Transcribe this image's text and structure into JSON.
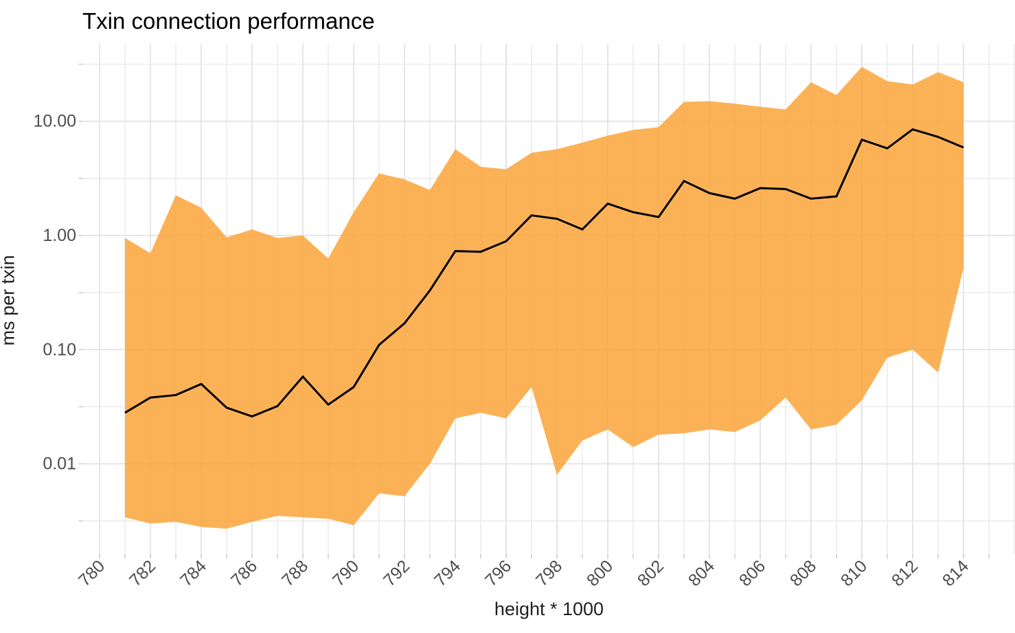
{
  "chart_data": {
    "type": "area",
    "title": "Txin connection performance",
    "xlabel": "height * 1000",
    "ylabel": "ms per txin",
    "grid": true,
    "legend": false,
    "x": [
      781,
      782,
      783,
      784,
      785,
      786,
      787,
      788,
      789,
      790,
      791,
      792,
      793,
      794,
      795,
      796,
      797,
      798,
      799,
      800,
      801,
      802,
      803,
      804,
      805,
      806,
      807,
      808,
      809,
      810,
      811,
      812,
      813,
      814
    ],
    "series": [
      {
        "name": "median",
        "kind": "line",
        "color": "#000000",
        "values": [
          0.028,
          0.038,
          0.04,
          0.05,
          0.031,
          0.026,
          0.032,
          0.058,
          0.033,
          0.047,
          0.11,
          0.17,
          0.33,
          0.73,
          0.72,
          0.89,
          1.5,
          1.4,
          1.13,
          1.9,
          1.6,
          1.45,
          3.0,
          2.35,
          2.1,
          2.6,
          2.55,
          2.1,
          2.2,
          6.9,
          5.8,
          8.5,
          7.3,
          5.9
        ]
      },
      {
        "name": "range-max",
        "kind": "band-upper",
        "values": [
          0.95,
          0.7,
          2.25,
          1.75,
          0.96,
          1.13,
          0.95,
          1.0,
          0.63,
          1.6,
          3.5,
          3.1,
          2.5,
          5.7,
          4.0,
          3.8,
          5.3,
          5.7,
          6.5,
          7.5,
          8.4,
          8.9,
          14.8,
          15.0,
          14.3,
          13.4,
          12.7,
          22,
          17,
          30,
          22.5,
          21,
          27,
          22
        ]
      },
      {
        "name": "range-min",
        "kind": "band-lower",
        "values": [
          0.0034,
          0.003,
          0.0031,
          0.0028,
          0.0027,
          0.0031,
          0.0035,
          0.0034,
          0.0033,
          0.0029,
          0.0055,
          0.0052,
          0.01,
          0.025,
          0.028,
          0.025,
          0.047,
          0.008,
          0.016,
          0.02,
          0.014,
          0.018,
          0.0185,
          0.02,
          0.019,
          0.024,
          0.038,
          0.02,
          0.022,
          0.036,
          0.085,
          0.1,
          0.063,
          0.52
        ]
      }
    ],
    "band": {
      "color": "#FAA43A",
      "opacity": 0.85
    },
    "x_axis": {
      "lim": [
        779.351,
        816.027
      ],
      "major": [
        780,
        782,
        784,
        786,
        788,
        790,
        792,
        794,
        796,
        798,
        800,
        802,
        804,
        806,
        808,
        810,
        812,
        814
      ],
      "minor": [
        781,
        783,
        785,
        787,
        789,
        791,
        793,
        795,
        797,
        799,
        801,
        803,
        805,
        807,
        809,
        811,
        813,
        815,
        816
      ],
      "tick_values": [
        780,
        781,
        782,
        783,
        784,
        785,
        786,
        787,
        788,
        789,
        790,
        791,
        792,
        793,
        794,
        795,
        796,
        797,
        798,
        799,
        800,
        801,
        802,
        803,
        804,
        805,
        806,
        807,
        808,
        809,
        810,
        811,
        812,
        813,
        814,
        815
      ],
      "label_angle": -45
    },
    "y_axis": {
      "log": true,
      "lim": [
        0.00162,
        47.6
      ],
      "major": [
        {
          "v": 0.01,
          "label": "0.01"
        },
        {
          "v": 0.1,
          "label": "0.10"
        },
        {
          "v": 1,
          "label": "1.00"
        },
        {
          "v": 10,
          "label": "10.00"
        }
      ],
      "minor": [
        0.00316,
        0.0316,
        0.316,
        3.16,
        31.6
      ]
    },
    "style": {
      "grid_major_color": "#E3E3E3",
      "grid_minor_color": "#EAEAEA",
      "tick_color": "#D4D4D4",
      "tick_label_color": "#4D4D4D",
      "line_width": 3
    }
  }
}
